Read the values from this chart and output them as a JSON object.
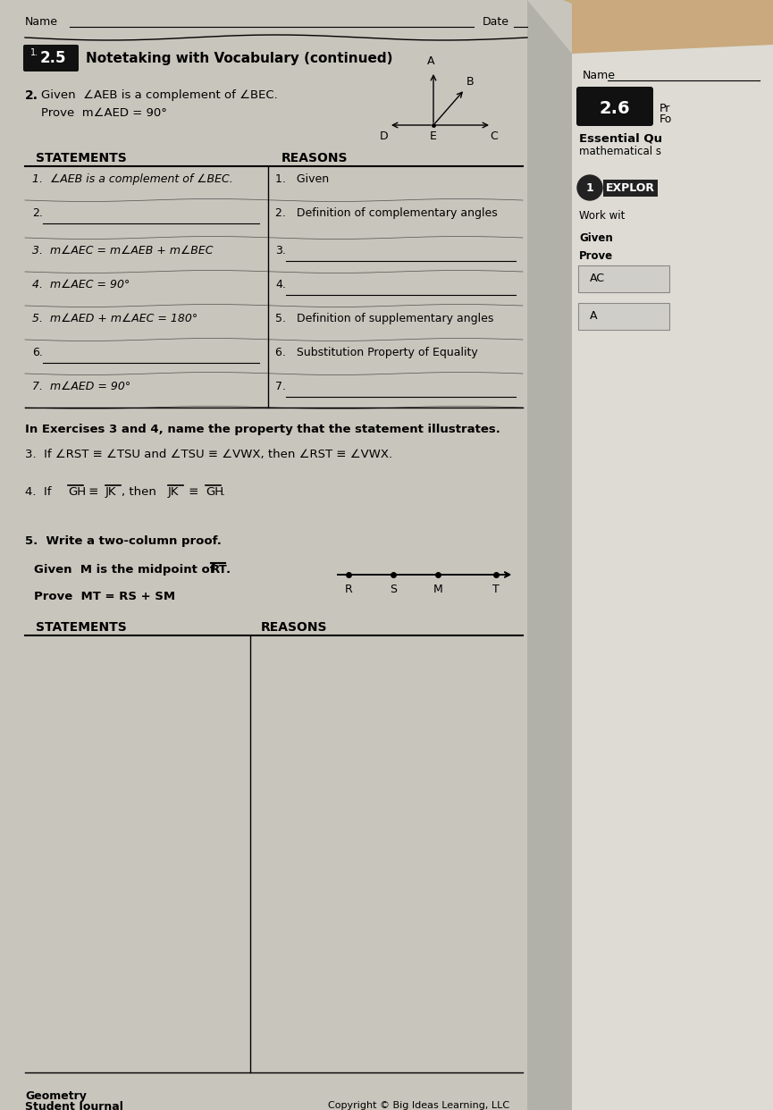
{
  "bg_color": "#c8c5bc",
  "page_color": "#e2e0da",
  "page_color2": "#d5d2cb",
  "right_bg": "#b8b5ae",
  "title_box_color": "#1a1a1a",
  "title_box_text": "2.5",
  "title_text": "Notetaking with Vocabulary (continued)",
  "name_label": "Name",
  "date_label": "Date",
  "section2_num": "2.",
  "section2_given": "Given  ∠AEB is a complement of ∠BEC.",
  "section2_prove": "Prove  m∠AED = 90°",
  "statements_header": "STATEMENTS",
  "reasons_header": "REASONS",
  "proof_rows": [
    {
      "stmt": "1.  ∠AEB is a complement of ∠BEC.",
      "reason": "1.   Given",
      "stmt_blank": false,
      "reason_blank": false
    },
    {
      "stmt": "2.",
      "reason": "2.   Definition of complementary angles",
      "stmt_blank": true,
      "reason_blank": false
    },
    {
      "stmt": "3.  m∠AEC = m∠AEB + m∠BEC",
      "reason": "3.",
      "stmt_blank": false,
      "reason_blank": true
    },
    {
      "stmt": "4.  m∠AEC = 90°",
      "reason": "4.",
      "stmt_blank": false,
      "reason_blank": true
    },
    {
      "stmt": "5.  m∠AED + m∠AEC = 180°",
      "reason": "5.   Definition of supplementary angles",
      "stmt_blank": false,
      "reason_blank": false
    },
    {
      "stmt": "6.",
      "reason": "6.   Substitution Property of Equality",
      "stmt_blank": true,
      "reason_blank": false
    },
    {
      "stmt": "7.  m∠AED = 90°",
      "reason": "7.",
      "stmt_blank": false,
      "reason_blank": true
    }
  ],
  "exercises_header": "In Exercises 3 and 4, name the property that the statement illustrates.",
  "exercise3": "3.  If ∠RST ≡ ∠TSU and ∠TSU ≡ ∠VWX, then ∠RST ≡ ∠VWX.",
  "exercise5_header": "5.  Write a two-column proof.",
  "exercise5_given": "Given  M is the midpoint of RT.",
  "exercise5_prove": "Prove  MT = RS + SM",
  "footer_left1": "Geometry",
  "footer_left2": "Student Journal",
  "footer_right": "Copyright © Big Ideas Learning, LLC",
  "right_name": "Name",
  "right_section": "2.6",
  "right_pr": "Pr",
  "right_fo": "Fo",
  "right_essential1": "Essential Qu",
  "right_essential2": "mathematical s",
  "right_explor_num": "1",
  "right_explor_text": "EXPLOR",
  "right_work": "Work wit",
  "right_given": "Given",
  "right_prove": "Prove",
  "right_ac": "AC",
  "right_a": "A"
}
